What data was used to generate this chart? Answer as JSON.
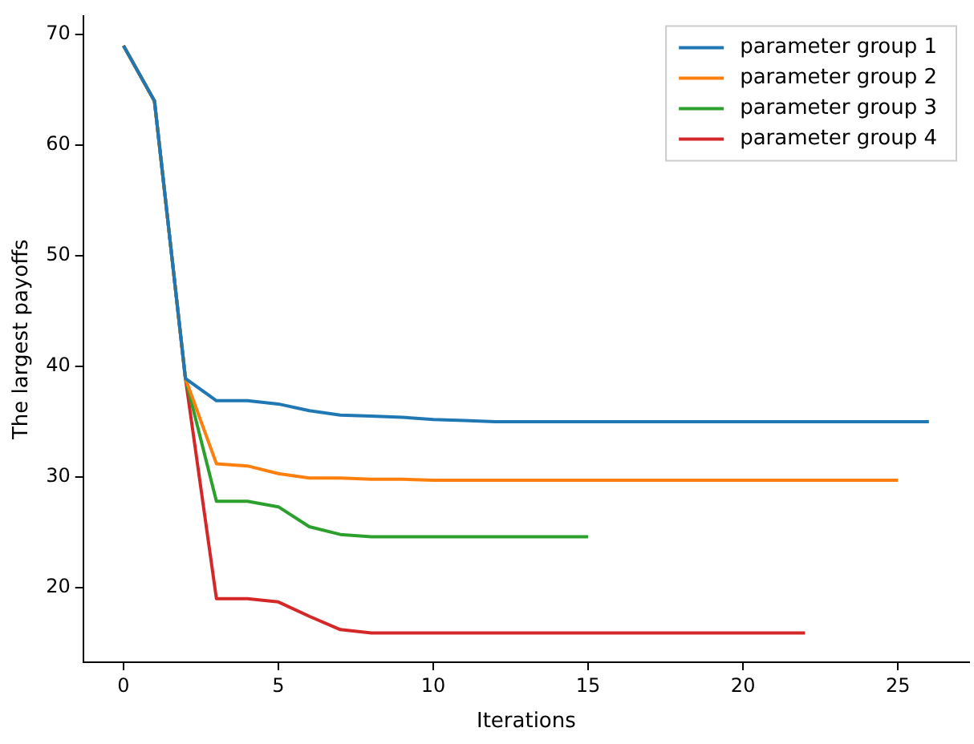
{
  "chart_data": {
    "type": "line",
    "xlabel": "Iterations",
    "ylabel": "The largest payoffs",
    "xlim": [
      -1.3,
      27.3
    ],
    "xticks": [
      0,
      5,
      10,
      15,
      20,
      25
    ],
    "ylim": [
      13.25,
      71.65
    ],
    "yticks": [
      20,
      30,
      40,
      50,
      60,
      70
    ],
    "grid": false,
    "legend": "top right",
    "marker": "none",
    "line_style": "solid",
    "series": [
      {
        "name": "parameter group 1",
        "color": "#1f77b4",
        "x": [
          0,
          1,
          2,
          3,
          4,
          5,
          6,
          7,
          8,
          9,
          10,
          11,
          12,
          13,
          14,
          15,
          16,
          17,
          18,
          19,
          20,
          21,
          22,
          23,
          24,
          25,
          26
        ],
        "values": [
          69,
          64,
          38.9,
          36.9,
          36.9,
          36.6,
          36.0,
          35.6,
          35.5,
          35.4,
          35.2,
          35.1,
          35.0,
          35.0,
          35.0,
          35.0,
          35.0,
          35.0,
          35.0,
          35.0,
          35.0,
          35.0,
          35.0,
          35.0,
          35.0,
          35.0,
          35.0
        ]
      },
      {
        "name": "parameter group 2",
        "color": "#ff7f0e",
        "x": [
          0,
          1,
          2,
          3,
          4,
          5,
          6,
          7,
          8,
          9,
          10,
          11,
          12,
          13,
          14,
          15,
          16,
          17,
          18,
          19,
          20,
          21,
          22,
          23,
          24,
          25
        ],
        "values": [
          69,
          64,
          38.9,
          31.2,
          31.0,
          30.3,
          29.9,
          29.9,
          29.8,
          29.8,
          29.7,
          29.7,
          29.7,
          29.7,
          29.7,
          29.7,
          29.7,
          29.7,
          29.7,
          29.7,
          29.7,
          29.7,
          29.7,
          29.7,
          29.7,
          29.7
        ]
      },
      {
        "name": "parameter group 3",
        "color": "#2ca02c",
        "x": [
          0,
          1,
          2,
          3,
          4,
          5,
          6,
          7,
          8,
          9,
          10,
          11,
          12,
          13,
          14,
          15
        ],
        "values": [
          69,
          64,
          38.9,
          27.8,
          27.8,
          27.3,
          25.5,
          24.8,
          24.6,
          24.6,
          24.6,
          24.6,
          24.6,
          24.6,
          24.6,
          24.6
        ]
      },
      {
        "name": "parameter group 4",
        "color": "#d62728",
        "x": [
          0,
          1,
          2,
          3,
          4,
          5,
          6,
          7,
          8,
          9,
          10,
          11,
          12,
          13,
          14,
          15,
          16,
          17,
          18,
          19,
          20,
          21,
          22
        ],
        "values": [
          69,
          64,
          38.9,
          19.0,
          19.0,
          18.7,
          17.4,
          16.2,
          15.9,
          15.9,
          15.9,
          15.9,
          15.9,
          15.9,
          15.9,
          15.9,
          15.9,
          15.9,
          15.9,
          15.9,
          15.9,
          15.9,
          15.9
        ]
      }
    ]
  }
}
